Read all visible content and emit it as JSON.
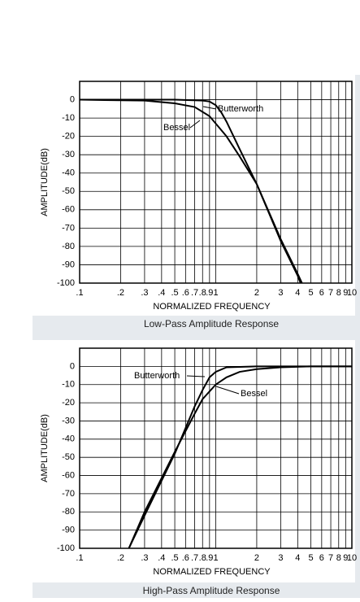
{
  "chart_data": [
    {
      "type": "line",
      "caption": "Low-Pass Amplitude Response",
      "xlabel": "NORMALIZED FREQUENCY",
      "ylabel": "AMPLITUDE(dB)",
      "xscale": "log",
      "grid": true,
      "color": "#000000",
      "xlim": [
        0.1,
        10
      ],
      "ylim": [
        -100,
        10
      ],
      "xticks": [
        {
          "value": 0.1,
          "label": ".1"
        },
        {
          "value": 0.2,
          "label": ".2"
        },
        {
          "value": 0.3,
          "label": ".3"
        },
        {
          "value": 0.4,
          "label": ".4"
        },
        {
          "value": 0.5,
          "label": ".5"
        },
        {
          "value": 0.6,
          "label": ".6"
        },
        {
          "value": 0.7,
          "label": ".7"
        },
        {
          "value": 0.8,
          "label": ".8"
        },
        {
          "value": 0.9,
          "label": ".9"
        },
        1,
        2,
        3,
        4,
        5,
        6,
        7,
        8,
        9,
        10
      ],
      "yticks": [
        0,
        -10,
        -20,
        -30,
        -40,
        -50,
        -60,
        -70,
        -80,
        -90,
        -100
      ],
      "series": [
        {
          "name": "Butterworth",
          "color": "#000000",
          "x": [
            0.1,
            0.5,
            0.8,
            0.9,
            1,
            1.1,
            1.2,
            1.5,
            2,
            3,
            4,
            4.3
          ],
          "values": [
            0,
            0,
            -0.5,
            -1,
            -3,
            -7,
            -12,
            -27,
            -46,
            -76,
            -95,
            -100
          ]
        },
        {
          "name": "Bessel",
          "color": "#000000",
          "x": [
            0.1,
            0.3,
            0.5,
            0.7,
            0.9,
            1,
            1.2,
            1.5,
            2,
            3,
            4,
            4.2
          ],
          "values": [
            0,
            -0.5,
            -2,
            -4,
            -9,
            -13,
            -20,
            -31,
            -46,
            -77,
            -96,
            -100
          ]
        }
      ]
    },
    {
      "type": "line",
      "caption": "High-Pass Amplitude Response",
      "xlabel": "NORMALIZED FREQUENCY",
      "ylabel": "AMPLITUDE(dB)",
      "xscale": "log",
      "grid": true,
      "color": "#000000",
      "xlim": [
        0.1,
        10
      ],
      "ylim": [
        -100,
        10
      ],
      "xticks": [
        {
          "value": 0.1,
          "label": ".1"
        },
        {
          "value": 0.2,
          "label": ".2"
        },
        {
          "value": 0.3,
          "label": ".3"
        },
        {
          "value": 0.4,
          "label": ".4"
        },
        {
          "value": 0.5,
          "label": ".5"
        },
        {
          "value": 0.6,
          "label": ".6"
        },
        {
          "value": 0.7,
          "label": ".7"
        },
        {
          "value": 0.8,
          "label": ".8"
        },
        {
          "value": 0.9,
          "label": ".9"
        },
        1,
        2,
        3,
        4,
        5,
        6,
        7,
        8,
        9,
        10
      ],
      "yticks": [
        0,
        -10,
        -20,
        -30,
        -40,
        -50,
        -60,
        -70,
        -80,
        -90,
        -100
      ],
      "series": [
        {
          "name": "Butterworth",
          "color": "#000000",
          "x": [
            0.23,
            0.3,
            0.5,
            0.7,
            0.8,
            0.9,
            1,
            1.2,
            2,
            10
          ],
          "values": [
            -100,
            -82,
            -48,
            -22,
            -13,
            -6,
            -3,
            -0.5,
            0,
            0
          ]
        },
        {
          "name": "Bessel",
          "color": "#000000",
          "x": [
            0.23,
            0.3,
            0.5,
            0.7,
            0.8,
            1,
            1.2,
            1.5,
            2,
            3,
            5,
            10
          ],
          "values": [
            -100,
            -80,
            -47,
            -26,
            -18,
            -10,
            -6,
            -3,
            -1.5,
            -0.5,
            0,
            0
          ]
        }
      ]
    }
  ]
}
